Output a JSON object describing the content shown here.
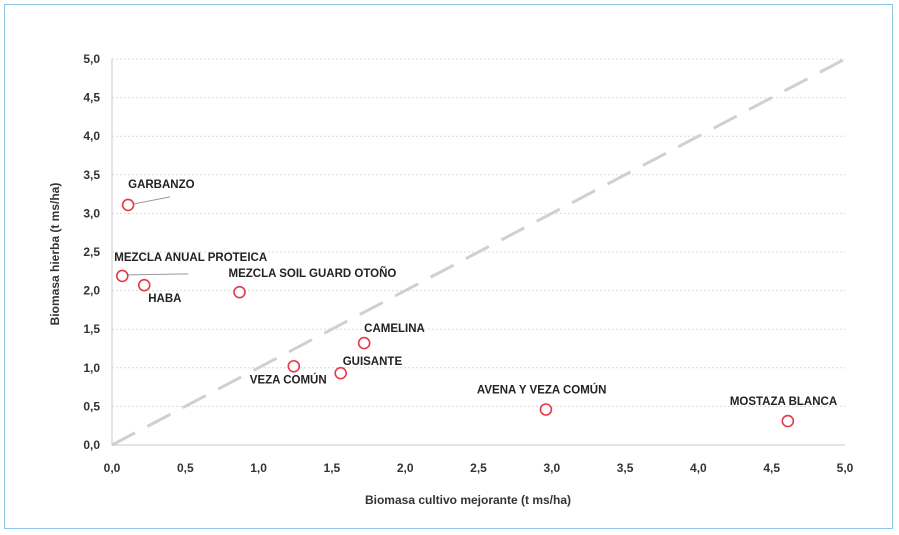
{
  "chart_data": {
    "type": "scatter",
    "title": "",
    "xlabel": "Biomasa cultivo mejorante (t ms/ha)",
    "ylabel": "Biomasa hierba (t ms/ha)",
    "xlim": [
      0,
      5
    ],
    "ylim": [
      0,
      5
    ],
    "x_ticks": [
      "0,0",
      "0,5",
      "1,0",
      "1,5",
      "2,0",
      "2,5",
      "3,0",
      "3,5",
      "4,0",
      "4,5",
      "5,0"
    ],
    "y_ticks": [
      "0,0",
      "0,5",
      "1,0",
      "1,5",
      "2,0",
      "2,5",
      "3,0",
      "3,5",
      "4,0",
      "4,5",
      "5,0"
    ],
    "grid": true,
    "reference_line": {
      "style": "dashed",
      "from": [
        0,
        0
      ],
      "to": [
        5,
        5
      ],
      "color": "#d0d0d0"
    },
    "marker_color": "#e63946",
    "points": [
      {
        "label": "GARBANZO",
        "x": 0.11,
        "y": 3.11
      },
      {
        "label": "MEZCLA ANUAL PROTEICA",
        "x": 0.07,
        "y": 2.19
      },
      {
        "label": "HABA",
        "x": 0.22,
        "y": 2.07
      },
      {
        "label": "MEZCLA SOIL GUARD OTOÑO",
        "x": 0.87,
        "y": 1.98
      },
      {
        "label": "CAMELINA",
        "x": 1.72,
        "y": 1.32
      },
      {
        "label": "VEZA COMÚN",
        "x": 1.24,
        "y": 1.02
      },
      {
        "label": "GUISANTE",
        "x": 1.56,
        "y": 0.93
      },
      {
        "label": "AVENA Y VEZA COMÚN",
        "x": 2.96,
        "y": 0.46
      },
      {
        "label": "MOSTAZA BLANCA",
        "x": 4.61,
        "y": 0.31
      }
    ]
  }
}
